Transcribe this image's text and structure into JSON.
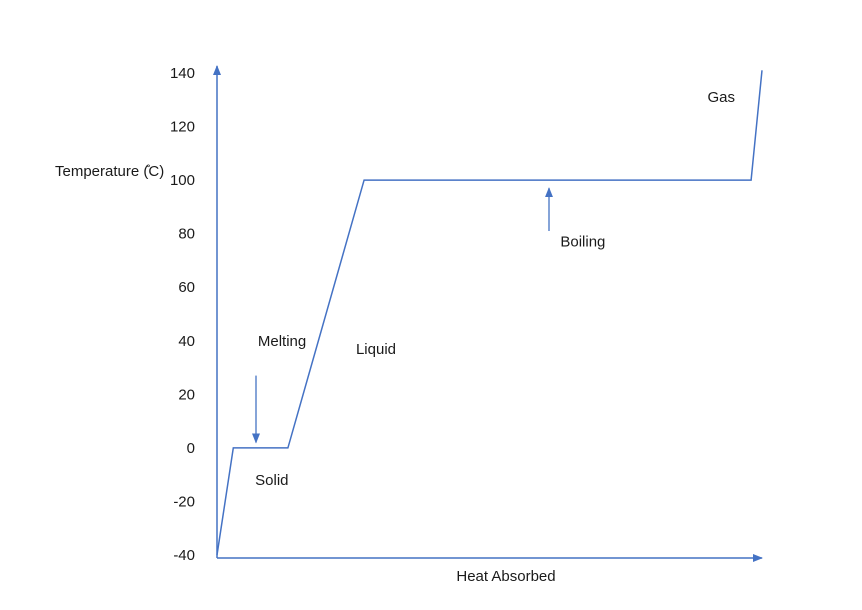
{
  "chart_data": {
    "type": "line",
    "title": "",
    "xlabel": "Heat Absorbed",
    "ylabel": "Temperature (̊C)",
    "yticks": [
      "140",
      "120",
      "100",
      "80",
      "60",
      "40",
      "20",
      "0",
      "-20",
      "-40"
    ],
    "ylim": [
      -40,
      140
    ],
    "xlim": [
      0,
      100
    ],
    "grid": false,
    "line_color": "#4472c4",
    "series": [
      {
        "x": [
          0,
          3,
          13,
          27,
          98,
          100
        ],
        "y": [
          -40,
          0,
          0,
          100,
          100,
          141
        ]
      }
    ],
    "annotations": [
      {
        "text": "Melting",
        "x": 7.5,
        "y": 40,
        "arrow_from_y": 27,
        "arrow_to_y": 2
      },
      {
        "text": "Solid",
        "x": 7,
        "y": -12
      },
      {
        "text": "Liquid",
        "x": 25.5,
        "y": 37
      },
      {
        "text": "Boiling",
        "x": 63,
        "y": 77,
        "arrow_from_y": 81,
        "arrow_to_y": 97
      },
      {
        "text": "Gas",
        "x": 90,
        "y": 131
      }
    ]
  }
}
